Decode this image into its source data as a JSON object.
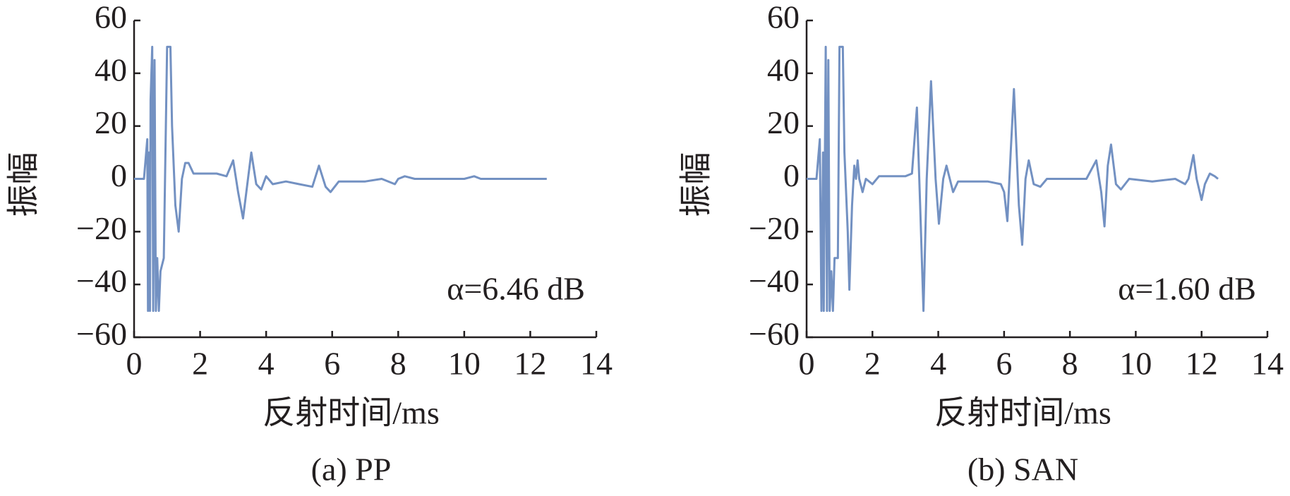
{
  "chart_data": [
    {
      "type": "line",
      "caption": "(a) PP",
      "xlabel": "反射时间/ms",
      "ylabel": "振幅",
      "annotation": "α=6.46 dB",
      "color": "#7391c2",
      "xlim": [
        0,
        14
      ],
      "ylim": [
        -60,
        60
      ],
      "xticks": [
        0,
        2,
        4,
        6,
        8,
        10,
        12,
        14
      ],
      "yticks": [
        {
          "value": -60,
          "label": "−60"
        },
        {
          "value": -40,
          "label": "−40"
        },
        {
          "value": -20,
          "label": "−20"
        },
        0,
        20,
        40,
        60
      ],
      "x": [
        0,
        0.3,
        0.4,
        0.42,
        0.45,
        0.48,
        0.5,
        0.55,
        0.58,
        0.62,
        0.66,
        0.7,
        0.75,
        0.8,
        0.9,
        1.0,
        1.1,
        1.15,
        1.25,
        1.35,
        1.45,
        1.55,
        1.65,
        1.8,
        2,
        2.5,
        2.8,
        3.0,
        3.15,
        3.3,
        3.45,
        3.55,
        3.7,
        3.85,
        4.0,
        4.2,
        4.6,
        5.0,
        5.4,
        5.6,
        5.8,
        5.95,
        6.2,
        6.5,
        7.0,
        7.5,
        7.9,
        8.0,
        8.2,
        8.5,
        9,
        10,
        10.3,
        10.5,
        11,
        12.5
      ],
      "values": [
        0,
        0,
        15,
        -50,
        10,
        -50,
        30,
        50,
        -50,
        45,
        -50,
        -30,
        -50,
        -35,
        -30,
        50,
        50,
        20,
        -10,
        -20,
        0,
        6,
        6,
        2,
        2,
        2,
        1,
        7,
        -5,
        -15,
        0,
        10,
        -2,
        -4,
        1,
        -2,
        -1,
        -2,
        -3,
        5,
        -3,
        -5,
        -1,
        -1,
        -1,
        0,
        -2,
        0,
        1,
        0,
        0,
        0,
        1,
        0,
        0,
        0
      ]
    },
    {
      "type": "line",
      "caption": "(b) SAN",
      "xlabel": "反射时间/ms",
      "ylabel": "振幅",
      "annotation": "α=1.60 dB",
      "color": "#7391c2",
      "xlim": [
        0,
        14
      ],
      "ylim": [
        -60,
        60
      ],
      "xticks": [
        0,
        2,
        4,
        6,
        8,
        10,
        12,
        14
      ],
      "yticks": [
        {
          "value": -60,
          "label": "−60"
        },
        {
          "value": -40,
          "label": "−40"
        },
        {
          "value": -20,
          "label": "−20"
        },
        0,
        20,
        40,
        60
      ],
      "x": [
        0,
        0.3,
        0.4,
        0.45,
        0.5,
        0.52,
        0.58,
        0.62,
        0.66,
        0.7,
        0.75,
        0.8,
        0.85,
        0.95,
        1.0,
        1.1,
        1.15,
        1.25,
        1.3,
        1.38,
        1.45,
        1.5,
        1.55,
        1.6,
        1.7,
        1.8,
        2.0,
        2.2,
        2.5,
        3.0,
        3.2,
        3.35,
        3.45,
        3.55,
        3.65,
        3.78,
        3.92,
        4.02,
        4.15,
        4.25,
        4.45,
        4.6,
        5.0,
        5.5,
        5.9,
        6.0,
        6.1,
        6.2,
        6.3,
        6.45,
        6.55,
        6.65,
        6.75,
        6.9,
        7.1,
        7.3,
        7.6,
        8.0,
        8.5,
        8.8,
        8.95,
        9.05,
        9.15,
        9.25,
        9.4,
        9.55,
        9.8,
        10.5,
        11.2,
        11.5,
        11.6,
        11.75,
        11.85,
        12.0,
        12.1,
        12.25,
        12.4,
        12.5
      ],
      "values": [
        0,
        0,
        15,
        -50,
        10,
        -50,
        50,
        -50,
        45,
        -50,
        -35,
        -50,
        -30,
        -30,
        50,
        50,
        10,
        -20,
        -42,
        -10,
        5,
        0,
        7,
        0,
        -5,
        0,
        -2,
        1,
        1,
        1,
        2,
        27,
        -10,
        -50,
        0,
        37,
        0,
        -17,
        0,
        5,
        -5,
        -1,
        -1,
        -1,
        -2,
        -5,
        -16,
        10,
        34,
        -10,
        -25,
        0,
        7,
        -2,
        -3,
        0,
        0,
        0,
        0,
        7,
        -5,
        -18,
        5,
        13,
        -2,
        -4,
        0,
        -1,
        0,
        -2,
        0,
        9,
        0,
        -8,
        -2,
        2,
        1,
        0
      ]
    }
  ]
}
